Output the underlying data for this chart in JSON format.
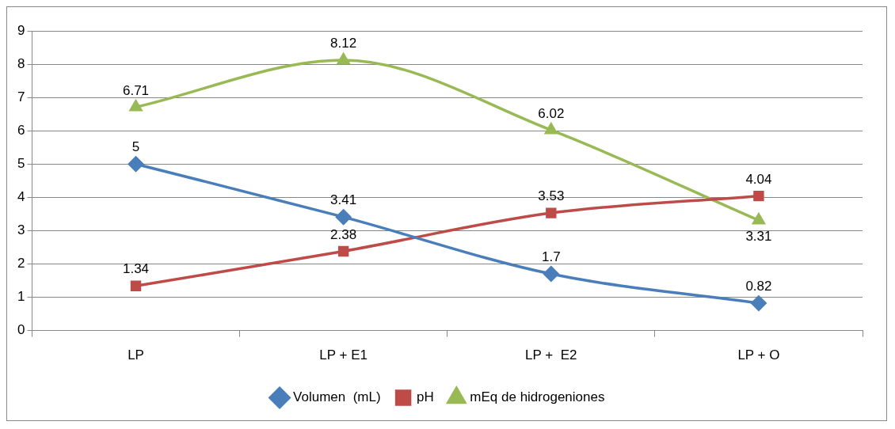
{
  "chart_data": {
    "type": "line",
    "categories": [
      "LP",
      "LP + E1",
      "LP +  E2",
      "LP + O"
    ],
    "series": [
      {
        "name": "Volumen  (mL)",
        "color": "#4a7ebb",
        "marker": "diamond",
        "values": [
          5,
          3.41,
          1.7,
          0.82
        ]
      },
      {
        "name": "pH",
        "color": "#be4b48",
        "marker": "square",
        "values": [
          1.34,
          2.38,
          3.53,
          4.04
        ]
      },
      {
        "name": "mEq de hidrogeniones",
        "color": "#98b954",
        "marker": "triangle",
        "values": [
          6.71,
          8.12,
          6.02,
          3.31
        ]
      }
    ],
    "ylim": [
      0,
      9
    ],
    "yticks": [
      0,
      1,
      2,
      3,
      4,
      5,
      6,
      7,
      8,
      9
    ],
    "grid": "y",
    "legend": "bottom",
    "data_labels": true
  }
}
